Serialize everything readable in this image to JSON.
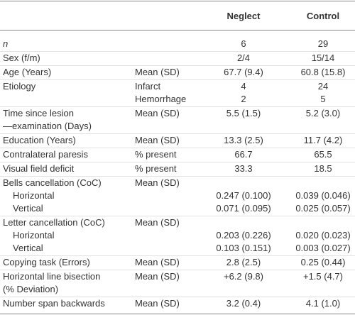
{
  "table": {
    "columns": [
      "Neglect",
      "Control"
    ],
    "rows": [
      [
        {
          "label": "n",
          "italic": true,
          "neglect": "6",
          "control": "29"
        }
      ],
      [
        {
          "label": "Sex (f/m)",
          "neglect": "2/4",
          "control": "15/14"
        }
      ],
      [
        {
          "label": "Age (Years)",
          "measure": "Mean (SD)",
          "neglect": "67.7 (9.4)",
          "control": "60.8 (15.8)"
        }
      ],
      [
        {
          "label": "Etiology",
          "measure": "Infarct",
          "neglect": "4",
          "control": "24"
        },
        {
          "measure": "Hemorrhage",
          "neglect": "2",
          "control": "5"
        }
      ],
      [
        {
          "label": "Time since lesion",
          "measure": "Mean (SD)",
          "neglect": "5.5 (1.5)",
          "control": "5.2 (3.0)"
        },
        {
          "label": "—examination (Days)"
        }
      ],
      [
        {
          "label": "Education (Years)",
          "measure": "Mean (SD)",
          "neglect": "13.3 (2.5)",
          "control": "11.7 (4.2)"
        }
      ],
      [
        {
          "label": "Contralateral paresis",
          "measure": "% present",
          "neglect": "66.7",
          "control": "65.5"
        }
      ],
      [
        {
          "label": "Visual field deficit",
          "measure": "% present",
          "neglect": "33.3",
          "control": "18.5"
        }
      ],
      [
        {
          "label": "Bells cancellation (CoC)",
          "measure": "Mean (SD)"
        },
        {
          "label": "Horizontal",
          "sub": true,
          "neglect": "0.247 (0.100)",
          "control": "0.039 (0.046)"
        },
        {
          "label": "Vertical",
          "sub": true,
          "neglect": "0.071 (0.095)",
          "control": "0.025 (0.057)"
        }
      ],
      [
        {
          "label": "Letter cancellation (CoC)",
          "measure": "Mean (SD)"
        },
        {
          "label": "Horizontal",
          "sub": true,
          "neglect": "0.203 (0.226)",
          "control": "0.020 (0.023)"
        },
        {
          "label": "Vertical",
          "sub": true,
          "neglect": "0.103 (0.151)",
          "control": "0.003 (0.027)"
        }
      ],
      [
        {
          "label": "Copying task (Errors)",
          "measure": "Mean (SD)",
          "neglect": "2.8 (2.5)",
          "control": "0.25 (0.44)"
        }
      ],
      [
        {
          "label": "Horizontal line bisection",
          "measure": "Mean (SD)",
          "neglect": "+6.2 (9.8)",
          "control": "+1.5 (4.7)"
        },
        {
          "label": "(% Deviation)"
        }
      ],
      [
        {
          "label": "Number span backwards",
          "measure": "Mean (SD)",
          "neglect": "3.2 (0.4)",
          "control": "4.1 (1.0)"
        }
      ]
    ]
  }
}
